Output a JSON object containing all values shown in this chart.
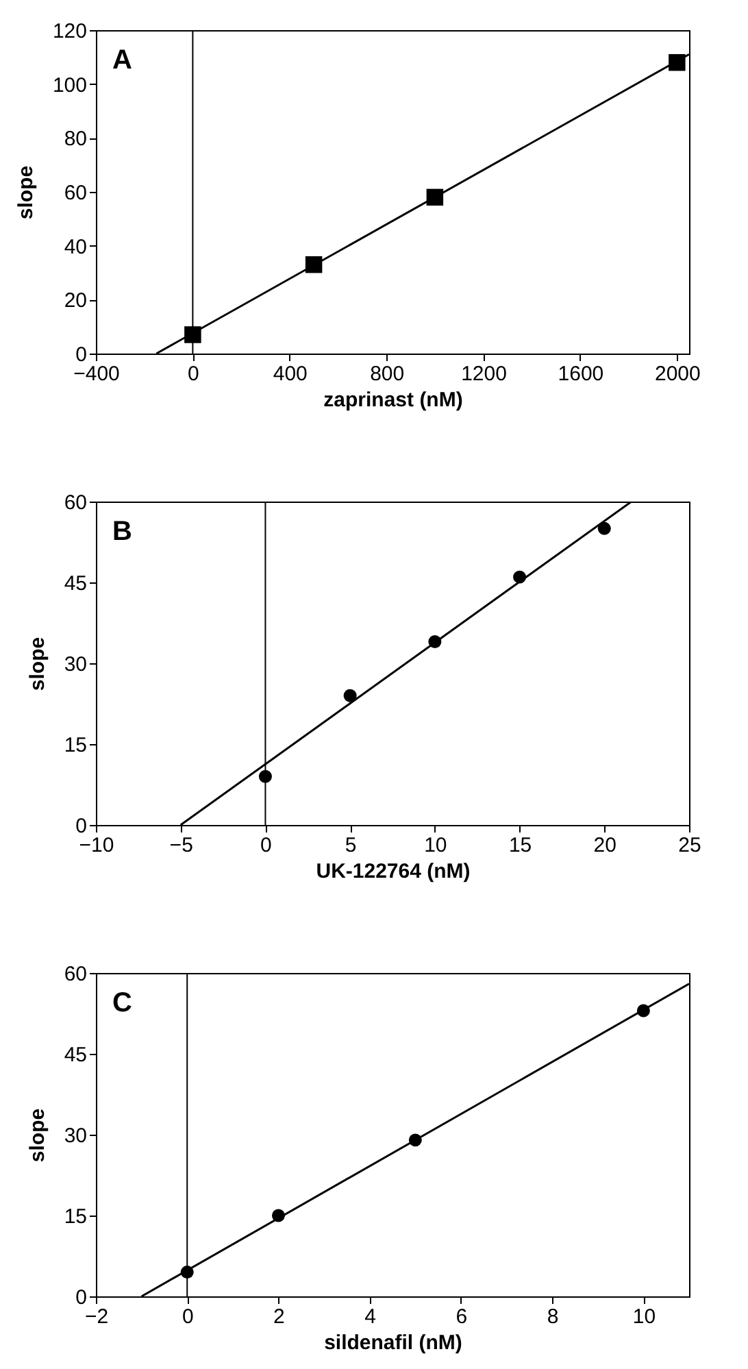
{
  "chart_data": [
    {
      "type": "scatter",
      "xlabel": "zaprinast (nM)",
      "ylabel": "slope",
      "annotations": [
        "A"
      ],
      "xlim": [
        -400,
        2050
      ],
      "xticks": [
        -400,
        0,
        400,
        800,
        1200,
        1600,
        2000
      ],
      "ylim": [
        0,
        120
      ],
      "yticks": [
        0,
        20,
        40,
        60,
        80,
        100,
        120
      ],
      "grid": false,
      "ref_lines": [
        {
          "axis": "x",
          "value": 0
        }
      ],
      "series": [
        {
          "type": "scatter",
          "marker": "square",
          "color": "#000000",
          "x": [
            0,
            500,
            1000,
            2000
          ],
          "values": [
            7,
            33,
            58,
            108
          ]
        },
        {
          "type": "line",
          "marker": "none",
          "color": "#000000",
          "x": [
            -150,
            2050
          ],
          "values": [
            0,
            111
          ]
        }
      ]
    },
    {
      "type": "scatter",
      "xlabel": "UK-122764 (nM)",
      "ylabel": "slope",
      "annotations": [
        "B"
      ],
      "xlim": [
        -10,
        25
      ],
      "xticks": [
        -10,
        -5,
        0,
        5,
        10,
        15,
        20,
        25
      ],
      "ylim": [
        0,
        60
      ],
      "yticks": [
        0,
        15,
        30,
        45,
        60
      ],
      "grid": false,
      "ref_lines": [
        {
          "axis": "x",
          "value": 0
        }
      ],
      "series": [
        {
          "type": "scatter",
          "marker": "circle",
          "color": "#000000",
          "x": [
            0,
            5,
            10,
            15,
            20
          ],
          "values": [
            9,
            24,
            34,
            46,
            55
          ]
        },
        {
          "type": "line",
          "marker": "none",
          "color": "#000000",
          "x": [
            -5,
            21.6
          ],
          "values": [
            0,
            60
          ]
        }
      ]
    },
    {
      "type": "scatter",
      "xlabel": "sildenafil (nM)",
      "ylabel": "slope",
      "annotations": [
        "C"
      ],
      "xlim": [
        -2,
        11
      ],
      "xticks": [
        -2,
        0,
        2,
        4,
        6,
        8,
        10
      ],
      "ylim": [
        0,
        60
      ],
      "yticks": [
        0,
        15,
        30,
        45,
        60
      ],
      "grid": false,
      "ref_lines": [
        {
          "axis": "x",
          "value": 0
        }
      ],
      "series": [
        {
          "type": "scatter",
          "marker": "circle",
          "color": "#000000",
          "x": [
            0,
            2,
            5,
            10
          ],
          "values": [
            4.5,
            15,
            29,
            53
          ]
        },
        {
          "type": "line",
          "marker": "none",
          "color": "#000000",
          "x": [
            -1,
            11
          ],
          "values": [
            0,
            58
          ]
        }
      ]
    }
  ]
}
